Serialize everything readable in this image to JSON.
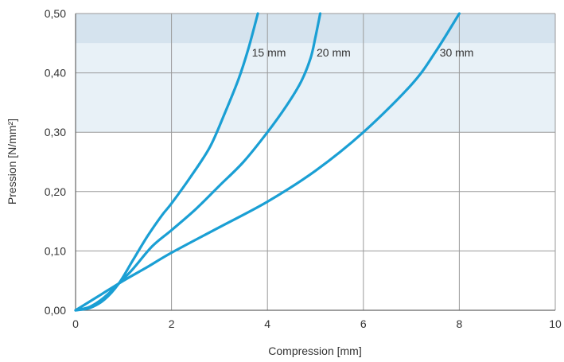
{
  "chart_data": {
    "type": "line",
    "xlabel": "Compression [mm]",
    "ylabel": "Pression [N/mm²]",
    "xlim": [
      0,
      10
    ],
    "ylim": [
      0,
      0.5
    ],
    "x_ticks": [
      "0",
      "2",
      "4",
      "6",
      "8",
      "10"
    ],
    "y_ticks": [
      "0,00",
      "0,10",
      "0,20",
      "0,30",
      "0,40",
      "0,50"
    ],
    "grid": true,
    "line_color": "#1a9fd4",
    "bands": [
      {
        "from": 0.3,
        "to": 0.45,
        "color": "#e8f1f7"
      },
      {
        "from": 0.45,
        "to": 0.5,
        "color": "#d5e3ee"
      }
    ],
    "series": [
      {
        "name": "15 mm",
        "x": [
          0,
          0.3,
          0.6,
          0.9,
          1.2,
          1.5,
          1.8,
          2.0,
          2.4,
          2.8,
          3.1,
          3.4,
          3.6,
          3.8
        ],
        "y": [
          0,
          0.004,
          0.018,
          0.045,
          0.085,
          0.125,
          0.16,
          0.18,
          0.225,
          0.275,
          0.33,
          0.39,
          0.44,
          0.5
        ]
      },
      {
        "name": "20 mm",
        "x": [
          0,
          0.3,
          0.6,
          0.9,
          1.2,
          1.6,
          2.0,
          2.5,
          3.0,
          3.5,
          4.0,
          4.4,
          4.7,
          4.9,
          5.0,
          5.1
        ],
        "y": [
          0,
          0.006,
          0.022,
          0.045,
          0.07,
          0.108,
          0.135,
          0.17,
          0.21,
          0.25,
          0.3,
          0.345,
          0.385,
          0.425,
          0.46,
          0.5
        ]
      },
      {
        "name": "30 mm",
        "x": [
          0,
          0.5,
          1.0,
          1.5,
          2.0,
          3.0,
          4.0,
          5.0,
          6.0,
          7.0,
          7.5,
          8.0
        ],
        "y": [
          0,
          0.025,
          0.05,
          0.073,
          0.097,
          0.14,
          0.183,
          0.235,
          0.3,
          0.38,
          0.435,
          0.5
        ]
      }
    ]
  }
}
